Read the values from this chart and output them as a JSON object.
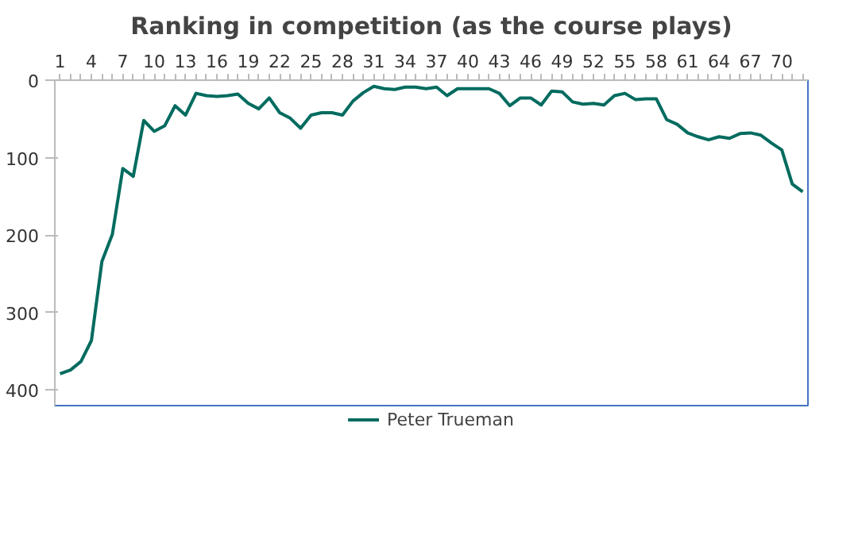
{
  "chart_data": {
    "type": "line",
    "title": "Ranking in competition (as the course plays)",
    "categories": [
      "1",
      null,
      null,
      "4",
      null,
      null,
      "7",
      null,
      null,
      "10",
      null,
      null,
      "13",
      null,
      null,
      "16",
      null,
      null,
      "19",
      null,
      null,
      "22",
      null,
      null,
      "25",
      null,
      null,
      "28",
      null,
      null,
      "31",
      null,
      null,
      "34",
      null,
      null,
      "37",
      null,
      null,
      "40",
      null,
      null,
      "43",
      null,
      null,
      "46",
      null,
      null,
      "49",
      null,
      null,
      "52",
      null,
      null,
      "55",
      null,
      null,
      "58",
      null,
      null,
      "61",
      null,
      null,
      "64",
      null,
      null,
      "67",
      null,
      null,
      "70",
      null,
      null
    ],
    "series": [
      {
        "name": "Peter Trueman",
        "color": "#006b5f",
        "values": [
          379,
          374,
          363,
          336,
          234,
          199,
          114,
          124,
          52,
          66,
          59,
          33,
          45,
          17,
          20,
          21,
          20,
          18,
          30,
          37,
          23,
          42,
          49,
          62,
          45,
          42,
          42,
          45,
          27,
          16,
          8,
          11,
          12,
          9,
          9,
          11,
          9,
          20,
          11,
          11,
          11,
          11,
          17,
          33,
          23,
          23,
          32,
          14,
          15,
          28,
          31,
          30,
          32,
          20,
          17,
          25,
          24,
          24,
          51,
          57,
          68,
          73,
          77,
          73,
          75,
          69,
          68,
          71,
          81,
          90,
          134,
          144
        ]
      }
    ],
    "ylim": [
      420,
      0
    ],
    "yticks": [
      0,
      100,
      200,
      300,
      400
    ],
    "grid": false,
    "legend": "bottom",
    "marker": "none",
    "line_style": "solid"
  }
}
